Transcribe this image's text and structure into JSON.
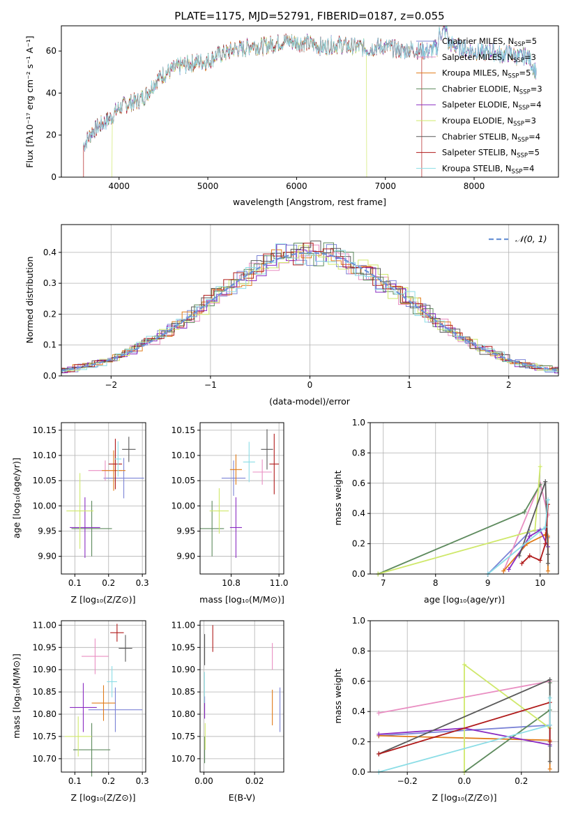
{
  "colors": [
    "#7b83d6",
    "#e98ec2",
    "#e07b18",
    "#5d8a5d",
    "#8a2bc2",
    "#cfe86a",
    "#595959",
    "#b01a1a",
    "#8bdde6"
  ],
  "chart_data": [
    {
      "id": "spectrum",
      "type": "line",
      "title": "PLATE=1175, MJD=52791, FIBERID=0187, z=0.055",
      "xlabel": "wavelength [Angstrom, rest frame]",
      "ylabel": "Flux [fλ10⁻¹⁷ erg cm⁻² s⁻¹ A⁻¹]",
      "xlim": [
        3350,
        8950
      ],
      "ylim": [
        0,
        72
      ],
      "xticks": [
        4000,
        5000,
        6000,
        7000,
        8000
      ],
      "yticks": [
        0,
        20,
        40,
        60
      ],
      "grid": false,
      "legend_position": "top-right",
      "legend": [
        "Chabrier MILES, N_SSP=5",
        "Salpeter MILES, N_SSP=3",
        "Kroupa MILES, N_SSP=5",
        "Chabrier ELODIE, N_SSP=3",
        "Salpeter ELODIE, N_SSP=4",
        "Kroupa ELODIE, N_SSP=3",
        "Chabrier STELIB, N_SSP=4",
        "Salpeter STELIB, N_SSP=5",
        "Kroupa STELIB, N_SSP=4"
      ],
      "ssp_label": "SSP",
      "envelope": {
        "x": [
          3600,
          3700,
          3800,
          3900,
          4000,
          4100,
          4200,
          4300,
          4400,
          4500,
          4600,
          4700,
          4800,
          4900,
          5000,
          5100,
          5200,
          5300,
          5400,
          5500,
          5600,
          5700,
          5800,
          5900,
          6000,
          6100,
          6200,
          6300,
          6400,
          6500,
          6600,
          6700,
          6800,
          6900,
          7000,
          7100,
          7200,
          7300,
          7400,
          7500,
          7600,
          7700,
          7800,
          7900,
          8000,
          8100,
          8200,
          8300,
          8400,
          8500,
          8600,
          8700
        ],
        "y": [
          15,
          22,
          25,
          28,
          33,
          35,
          36,
          39,
          45,
          49,
          51,
          53,
          54,
          55,
          55,
          58,
          59,
          61,
          61,
          63,
          62,
          63,
          64,
          65,
          64,
          64,
          63,
          62,
          63,
          63,
          62,
          62,
          61,
          62,
          62,
          61,
          60,
          61,
          60,
          60,
          62,
          64,
          62,
          61,
          60,
          59,
          60,
          58,
          59,
          57,
          58,
          50
        ]
      },
      "truncations": [
        {
          "series": "Kroupa ELODIE",
          "x_min": 3920,
          "x_max": 6790
        },
        {
          "series": "Salpeter STELIB",
          "x_min": 3600,
          "x_max": 7410
        }
      ]
    },
    {
      "id": "residuals",
      "type": "histogram",
      "xlabel": "(data-model)/error",
      "ylabel": "Normed distribution",
      "xlim": [
        -2.5,
        2.5
      ],
      "ylim": [
        0,
        0.49
      ],
      "xticks": [
        -2,
        -1,
        0,
        1,
        2
      ],
      "yticks": [
        0.0,
        0.1,
        0.2,
        0.3,
        0.4
      ],
      "grid": true,
      "bin_width": 0.1,
      "legend_position": "top-right",
      "reference_curve": "𝒩(0, 1)"
    },
    {
      "id": "age-vs-Z",
      "type": "scatter",
      "xlabel": "Z [log₁₀(Z/Z⊙)]",
      "ylabel": "age  [log₁₀(age/yr)]",
      "xlim": [
        0.06,
        0.31
      ],
      "ylim": [
        9.865,
        10.165
      ],
      "xticks": [
        0.1,
        0.2,
        0.3
      ],
      "yticks": [
        9.9,
        9.95,
        10.0,
        10.05,
        10.1,
        10.15
      ],
      "grid": true,
      "points": [
        {
          "x": 0.245,
          "y": 10.055,
          "xerr": 0.06,
          "yerr": 0.04
        },
        {
          "x": 0.19,
          "y": 10.07,
          "xerr": 0.05,
          "yerr": 0.02
        },
        {
          "x": 0.215,
          "y": 10.07,
          "xerr": 0.035,
          "yerr": 0.04
        },
        {
          "x": 0.15,
          "y": 9.955,
          "xerr": 0.06,
          "yerr": 0.055
        },
        {
          "x": 0.13,
          "y": 9.957,
          "xerr": 0.045,
          "yerr": 0.06
        },
        {
          "x": 0.115,
          "y": 9.99,
          "xerr": 0.04,
          "yerr": 0.075
        },
        {
          "x": 0.26,
          "y": 10.112,
          "xerr": 0.02,
          "yerr": 0.025
        },
        {
          "x": 0.22,
          "y": 10.083,
          "xerr": 0.02,
          "yerr": 0.05
        },
        {
          "x": 0.228,
          "y": 10.093,
          "xerr": 0.01,
          "yerr": 0.035
        }
      ]
    },
    {
      "id": "age-vs-mass",
      "type": "scatter",
      "xlabel": "mass [log₁₀(M/M⊙)]",
      "ylabel": "",
      "xlim": [
        10.67,
        11.02
      ],
      "ylim": [
        9.865,
        10.165
      ],
      "xticks": [
        10.8,
        11.0
      ],
      "yticks": [
        9.9,
        9.95,
        10.0,
        10.05,
        10.1,
        10.15
      ],
      "grid": true,
      "points": [
        {
          "x": 10.81,
          "y": 10.055,
          "xerr": 0.05,
          "yerr": 0.035
        },
        {
          "x": 10.93,
          "y": 10.067,
          "xerr": 0.04,
          "yerr": 0.025
        },
        {
          "x": 10.82,
          "y": 10.072,
          "xerr": 0.025,
          "yerr": 0.03
        },
        {
          "x": 10.72,
          "y": 9.955,
          "xerr": 0.05,
          "yerr": 0.055
        },
        {
          "x": 10.82,
          "y": 9.957,
          "xerr": 0.025,
          "yerr": 0.06
        },
        {
          "x": 10.75,
          "y": 9.99,
          "xerr": 0.04,
          "yerr": 0.045
        },
        {
          "x": 10.95,
          "y": 10.112,
          "xerr": 0.025,
          "yerr": 0.04
        },
        {
          "x": 10.98,
          "y": 10.083,
          "xerr": 0.02,
          "yerr": 0.06
        },
        {
          "x": 10.875,
          "y": 10.087,
          "xerr": 0.025,
          "yerr": 0.04
        }
      ]
    },
    {
      "id": "mass-weight-vs-age",
      "type": "line",
      "xlabel": "age  [log₁₀(age/yr)]",
      "ylabel": "mass weight",
      "xlim": [
        6.75,
        10.35
      ],
      "ylim": [
        0,
        1
      ],
      "xticks": [
        7,
        8,
        9,
        10
      ],
      "yticks": [
        0.0,
        0.2,
        0.4,
        0.6,
        0.8,
        1.0
      ],
      "grid": true,
      "series": [
        {
          "x": [
            9.0,
            9.8,
            10.1,
            10.15,
            10.15
          ],
          "y": [
            0.0,
            0.28,
            0.3,
            0.24,
            0.18
          ]
        },
        {
          "x": [
            9.3,
            10.0,
            10.15
          ],
          "y": [
            0.02,
            0.6,
            0.39
          ]
        },
        {
          "x": [
            9.3,
            9.75,
            10.1,
            10.15,
            10.15
          ],
          "y": [
            0.02,
            0.2,
            0.26,
            0.25,
            0.02
          ]
        },
        {
          "x": [
            6.9,
            9.7,
            10.0
          ],
          "y": [
            0.0,
            0.41,
            0.59
          ]
        },
        {
          "x": [
            9.4,
            9.8,
            10.0,
            10.15
          ],
          "y": [
            0.03,
            0.25,
            0.29,
            0.18
          ]
        },
        {
          "x": [
            6.9,
            9.9,
            10.0
          ],
          "y": [
            0.0,
            0.29,
            0.71
          ]
        },
        {
          "x": [
            9.6,
            10.1,
            10.15,
            10.15
          ],
          "y": [
            0.12,
            0.61,
            0.13,
            0.07
          ]
        },
        {
          "x": [
            9.65,
            9.8,
            10.0,
            10.1,
            10.15
          ],
          "y": [
            0.07,
            0.12,
            0.09,
            0.2,
            0.46
          ]
        },
        {
          "x": [
            9.0,
            10.1,
            10.15
          ],
          "y": [
            0.0,
            0.31,
            0.49
          ]
        }
      ]
    },
    {
      "id": "mass-vs-Z",
      "type": "scatter",
      "xlabel": "Z [log₁₀(Z/Z⊙)]",
      "ylabel": "mass [log₁₀(M/M⊙)]",
      "xlim": [
        0.06,
        0.31
      ],
      "ylim": [
        10.67,
        11.01
      ],
      "xticks": [
        0.1,
        0.2,
        0.3
      ],
      "yticks": [
        10.7,
        10.75,
        10.8,
        10.85,
        10.9,
        10.95,
        11.0
      ],
      "grid": true,
      "points": [
        {
          "x": 0.22,
          "y": 10.81,
          "xerr": 0.08,
          "yerr": 0.05
        },
        {
          "x": 0.16,
          "y": 10.93,
          "xerr": 0.04,
          "yerr": 0.04
        },
        {
          "x": 0.185,
          "y": 10.825,
          "xerr": 0.035,
          "yerr": 0.04
        },
        {
          "x": 0.15,
          "y": 10.72,
          "xerr": 0.055,
          "yerr": 0.06
        },
        {
          "x": 0.125,
          "y": 10.815,
          "xerr": 0.04,
          "yerr": 0.055
        },
        {
          "x": 0.11,
          "y": 10.75,
          "xerr": 0.04,
          "yerr": 0.045
        },
        {
          "x": 0.25,
          "y": 10.948,
          "xerr": 0.02,
          "yerr": 0.03
        },
        {
          "x": 0.225,
          "y": 10.983,
          "xerr": 0.02,
          "yerr": 0.02
        },
        {
          "x": 0.21,
          "y": 10.873,
          "xerr": 0.015,
          "yerr": 0.035
        }
      ]
    },
    {
      "id": "mass-vs-EBV",
      "type": "scatter",
      "xlabel": "E(B-V)",
      "ylabel": "",
      "xlim": [
        -0.0015,
        0.0315
      ],
      "ylim": [
        10.67,
        11.01
      ],
      "xticks": [
        0.0,
        0.02
      ],
      "yticks": [
        10.7,
        10.75,
        10.8,
        10.85,
        10.9,
        10.95,
        11.0
      ],
      "grid": true,
      "points": [
        {
          "x": 0.03,
          "y": 10.81,
          "xerr": 0.0,
          "yerr": 0.05
        },
        {
          "x": 0.027,
          "y": 10.93,
          "xerr": 0.0,
          "yerr": 0.03
        },
        {
          "x": 0.027,
          "y": 10.815,
          "xerr": 0.0,
          "yerr": 0.04
        },
        {
          "x": 0.0003,
          "y": 10.72,
          "xerr": 0.0,
          "yerr": 0.03
        },
        {
          "x": 0.0003,
          "y": 10.815,
          "xerr": 0.0,
          "yerr": 0.025
        },
        {
          "x": 0.0005,
          "y": 10.75,
          "xerr": 0.0,
          "yerr": 0.03
        },
        {
          "x": 0.0003,
          "y": 10.945,
          "xerr": 0.0,
          "yerr": 0.035
        },
        {
          "x": 0.0035,
          "y": 10.97,
          "xerr": 0.0,
          "yerr": 0.03
        },
        {
          "x": 0.0002,
          "y": 10.86,
          "xerr": 0.0,
          "yerr": 0.035
        }
      ]
    },
    {
      "id": "mass-weight-vs-Z",
      "type": "line",
      "xlabel": "Z [log₁₀(Z/Z⊙)]",
      "ylabel": "mass weight",
      "xlim": [
        -0.33,
        0.33
      ],
      "ylim": [
        0,
        1
      ],
      "xticks": [
        -0.2,
        0.0,
        0.2
      ],
      "yticks": [
        0.0,
        0.2,
        0.4,
        0.6,
        0.8,
        1.0
      ],
      "grid": true,
      "series": [
        {
          "x": [
            -0.3,
            0.3,
            0.3
          ],
          "y": [
            0.24,
            0.31,
            0.17
          ]
        },
        {
          "x": [
            -0.3,
            0.3
          ],
          "y": [
            0.39,
            0.6
          ]
        },
        {
          "x": [
            -0.3,
            0.3,
            0.3
          ],
          "y": [
            0.24,
            0.21,
            0.02
          ]
        },
        {
          "x": [
            0.0,
            0.3,
            0.3
          ],
          "y": [
            0.0,
            0.41,
            0.59
          ]
        },
        {
          "x": [
            -0.3,
            0.0,
            0.3
          ],
          "y": [
            0.25,
            0.29,
            0.18
          ]
        },
        {
          "x": [
            0.0,
            0.0,
            0.3
          ],
          "y": [
            0.0,
            0.71,
            0.29
          ]
        },
        {
          "x": [
            -0.3,
            0.3,
            0.3
          ],
          "y": [
            0.12,
            0.61,
            0.07
          ]
        },
        {
          "x": [
            -0.3,
            0.3,
            0.3
          ],
          "y": [
            0.12,
            0.46,
            0.2
          ]
        },
        {
          "x": [
            -0.3,
            0.3,
            0.3
          ],
          "y": [
            0.0,
            0.31,
            0.49
          ]
        }
      ]
    }
  ]
}
